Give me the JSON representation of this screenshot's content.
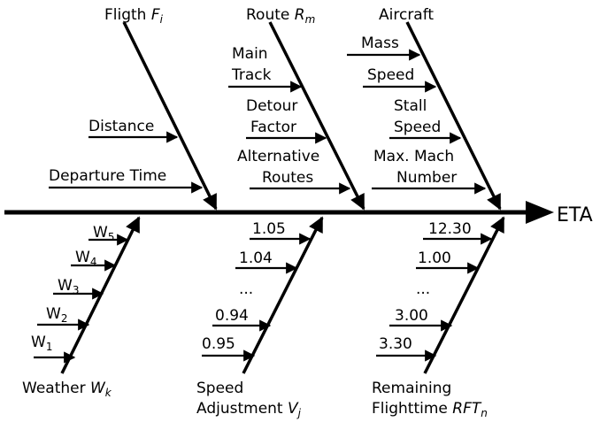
{
  "effect": "ETA",
  "flight": {
    "label": "Fligth",
    "symbol": "F",
    "index": "i",
    "items": [
      "Distance",
      "Departure Time"
    ]
  },
  "route": {
    "label": "Route",
    "symbol": "R",
    "index": "m",
    "items": [
      [
        "Main",
        "Track"
      ],
      [
        "Detour",
        "Factor"
      ],
      [
        "Alternative",
        "Routes"
      ]
    ]
  },
  "aircraft": {
    "label": "Aircraft",
    "items": [
      [
        "Mass"
      ],
      [
        "Speed"
      ],
      [
        "Stall",
        "Speed"
      ],
      [
        "Max. Mach",
        "Number"
      ]
    ]
  },
  "weather": {
    "label": "Weather",
    "symbol": "W",
    "index": "k",
    "items": [
      {
        "symbol": "W",
        "index": "5"
      },
      {
        "symbol": "W",
        "index": "4"
      },
      {
        "symbol": "W",
        "index": "3"
      },
      {
        "symbol": "W",
        "index": "2"
      },
      {
        "symbol": "W",
        "index": "1"
      }
    ]
  },
  "speed": {
    "label": [
      "Speed",
      "Adjustment"
    ],
    "symbol": "V",
    "index": "j",
    "items": [
      "1.05",
      "1.04",
      "...",
      "0.94",
      "0.95"
    ]
  },
  "remaining": {
    "label": [
      "Remaining",
      "Flighttime"
    ],
    "symbol": "RFT",
    "index": "n",
    "items": [
      "12.30",
      "1.00",
      "...",
      "3.00",
      "3.30"
    ]
  }
}
